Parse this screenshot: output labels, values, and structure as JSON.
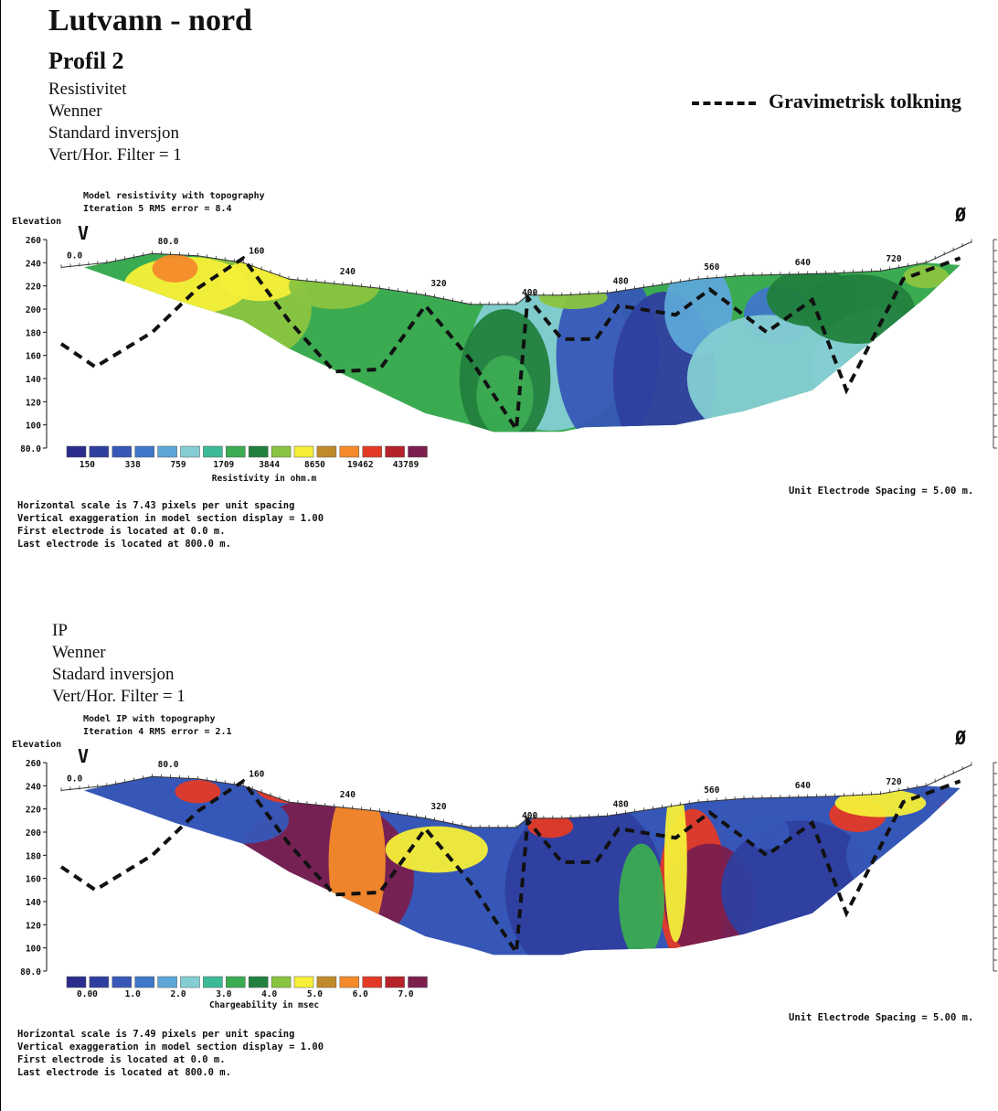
{
  "header": {
    "title": "Lutvann - nord",
    "subtitle": "Profil 2",
    "res_lines": [
      "Resistivitet",
      "Wenner",
      "Standard inversjon",
      "Vert/Hor. Filter = 1"
    ],
    "ip_lines": [
      "IP",
      "Wenner",
      "Stadard inversjon",
      "Vert/Hor. Filter = 1"
    ],
    "legend_label": "Gravimetrisk tolkning"
  },
  "chart_data": [
    {
      "type": "heatmap",
      "title": "Model resistivity with topography",
      "subtitle": "Iteration 5 RMS error = 8.4",
      "ylabel": "Elevation",
      "ylim": [
        80,
        260
      ],
      "y_ticks": [
        "260",
        "240",
        "220",
        "200",
        "180",
        "160",
        "140",
        "120",
        "100",
        "80.0"
      ],
      "x_labels": [
        "0.0",
        "80.0",
        "160",
        "240",
        "320",
        "400",
        "480",
        "560",
        "640",
        "720"
      ],
      "side_labels": {
        "left": "V",
        "right": "Ø"
      },
      "colorbar": {
        "label": "Resistivity in ohm.m",
        "ticks": [
          "150",
          "338",
          "759",
          "1709",
          "3844",
          "8650",
          "19462",
          "43789"
        ],
        "colors": [
          "#2a2d8c",
          "#2f3f9f",
          "#3657b7",
          "#3f77c9",
          "#5ca6d8",
          "#84cdd3",
          "#3cba98",
          "#3bab52",
          "#21803d",
          "#8ac440",
          "#f6ef38",
          "#c08a2a",
          "#f48a2a",
          "#e33a26",
          "#b6222a",
          "#7a1f4e"
        ]
      },
      "topography": [
        [
          0,
          236
        ],
        [
          40,
          240
        ],
        [
          80,
          248
        ],
        [
          120,
          246
        ],
        [
          160,
          240
        ],
        [
          200,
          226
        ],
        [
          240,
          222
        ],
        [
          280,
          218
        ],
        [
          320,
          212
        ],
        [
          360,
          204
        ],
        [
          400,
          204
        ],
        [
          410,
          212
        ],
        [
          440,
          212
        ],
        [
          480,
          214
        ],
        [
          520,
          220
        ],
        [
          560,
          226
        ],
        [
          600,
          229
        ],
        [
          640,
          230
        ],
        [
          680,
          231
        ],
        [
          720,
          233
        ],
        [
          760,
          240
        ],
        [
          800,
          258
        ]
      ],
      "bottom": [
        [
          20,
          236
        ],
        [
          60,
          222
        ],
        [
          100,
          208
        ],
        [
          160,
          190
        ],
        [
          200,
          166
        ],
        [
          260,
          138
        ],
        [
          320,
          110
        ],
        [
          360,
          100
        ],
        [
          380,
          94
        ],
        [
          440,
          94
        ],
        [
          460,
          98
        ],
        [
          540,
          100
        ],
        [
          600,
          112
        ],
        [
          660,
          130
        ],
        [
          700,
          162
        ],
        [
          760,
          210
        ],
        [
          790,
          238
        ]
      ],
      "gravimetric_line": [
        [
          0,
          170
        ],
        [
          30,
          150
        ],
        [
          80,
          180
        ],
        [
          120,
          218
        ],
        [
          160,
          244
        ],
        [
          200,
          190
        ],
        [
          240,
          146
        ],
        [
          280,
          148
        ],
        [
          320,
          203
        ],
        [
          360,
          156
        ],
        [
          400,
          96
        ],
        [
          410,
          210
        ],
        [
          440,
          174
        ],
        [
          470,
          174
        ],
        [
          490,
          203
        ],
        [
          540,
          195
        ],
        [
          570,
          217
        ],
        [
          620,
          180
        ],
        [
          660,
          208
        ],
        [
          690,
          130
        ],
        [
          740,
          226
        ],
        [
          790,
          244
        ]
      ],
      "scale_note": "Horizontal scale is 7.43 pixels per unit spacing",
      "vert_note": "Vertical exaggeration in model section display = 1.00",
      "first_note": "First electrode is located at 0.0 m.",
      "last_note": "Last electrode is located at 800.0 m.",
      "unit_note": "Unit Electrode Spacing = 5.00 m."
    },
    {
      "type": "heatmap",
      "title": "Model IP with topography",
      "subtitle": "Iteration 4 RMS error = 2.1",
      "ylabel": "Elevation",
      "ylim": [
        80,
        260
      ],
      "y_ticks": [
        "260",
        "240",
        "220",
        "200",
        "180",
        "160",
        "140",
        "120",
        "100",
        "80.0"
      ],
      "x_labels": [
        "0.0",
        "80.0",
        "160",
        "240",
        "320",
        "400",
        "480",
        "560",
        "640",
        "720"
      ],
      "side_labels": {
        "left": "V",
        "right": "Ø"
      },
      "colorbar": {
        "label": "Chargeability in msec",
        "ticks": [
          "0.00",
          "1.0",
          "2.0",
          "3.0",
          "4.0",
          "5.0",
          "6.0",
          "7.0"
        ],
        "colors": [
          "#2a2d8c",
          "#2f3f9f",
          "#3657b7",
          "#3f77c9",
          "#5ca6d8",
          "#84cdd3",
          "#3cba98",
          "#3bab52",
          "#21803d",
          "#8ac440",
          "#f6ef38",
          "#c08a2a",
          "#f48a2a",
          "#e33a26",
          "#b6222a",
          "#7a1f4e"
        ]
      },
      "topography": [
        [
          0,
          236
        ],
        [
          40,
          240
        ],
        [
          80,
          248
        ],
        [
          120,
          246
        ],
        [
          160,
          240
        ],
        [
          200,
          226
        ],
        [
          240,
          222
        ],
        [
          280,
          218
        ],
        [
          320,
          212
        ],
        [
          360,
          204
        ],
        [
          400,
          204
        ],
        [
          410,
          212
        ],
        [
          440,
          212
        ],
        [
          480,
          214
        ],
        [
          520,
          220
        ],
        [
          560,
          226
        ],
        [
          600,
          229
        ],
        [
          640,
          230
        ],
        [
          680,
          231
        ],
        [
          720,
          233
        ],
        [
          760,
          240
        ],
        [
          800,
          258
        ]
      ],
      "bottom": [
        [
          20,
          236
        ],
        [
          60,
          222
        ],
        [
          100,
          208
        ],
        [
          160,
          190
        ],
        [
          200,
          166
        ],
        [
          260,
          138
        ],
        [
          320,
          110
        ],
        [
          360,
          100
        ],
        [
          380,
          94
        ],
        [
          440,
          94
        ],
        [
          460,
          98
        ],
        [
          540,
          100
        ],
        [
          600,
          112
        ],
        [
          660,
          130
        ],
        [
          700,
          162
        ],
        [
          760,
          210
        ],
        [
          790,
          238
        ]
      ],
      "gravimetric_line": [
        [
          0,
          170
        ],
        [
          30,
          150
        ],
        [
          80,
          180
        ],
        [
          120,
          218
        ],
        [
          160,
          244
        ],
        [
          200,
          190
        ],
        [
          240,
          146
        ],
        [
          280,
          148
        ],
        [
          320,
          203
        ],
        [
          360,
          156
        ],
        [
          400,
          96
        ],
        [
          410,
          210
        ],
        [
          440,
          174
        ],
        [
          470,
          174
        ],
        [
          490,
          203
        ],
        [
          540,
          195
        ],
        [
          570,
          217
        ],
        [
          620,
          180
        ],
        [
          660,
          208
        ],
        [
          690,
          130
        ],
        [
          740,
          226
        ],
        [
          790,
          244
        ]
      ],
      "scale_note": "Horizontal scale is 7.49 pixels per unit spacing",
      "vert_note": "Vertical exaggeration in model section display = 1.00",
      "first_note": "First electrode is located at 0.0 m.",
      "last_note": "Last electrode is located at 800.0 m.",
      "unit_note": "Unit Electrode Spacing = 5.00 m."
    }
  ]
}
